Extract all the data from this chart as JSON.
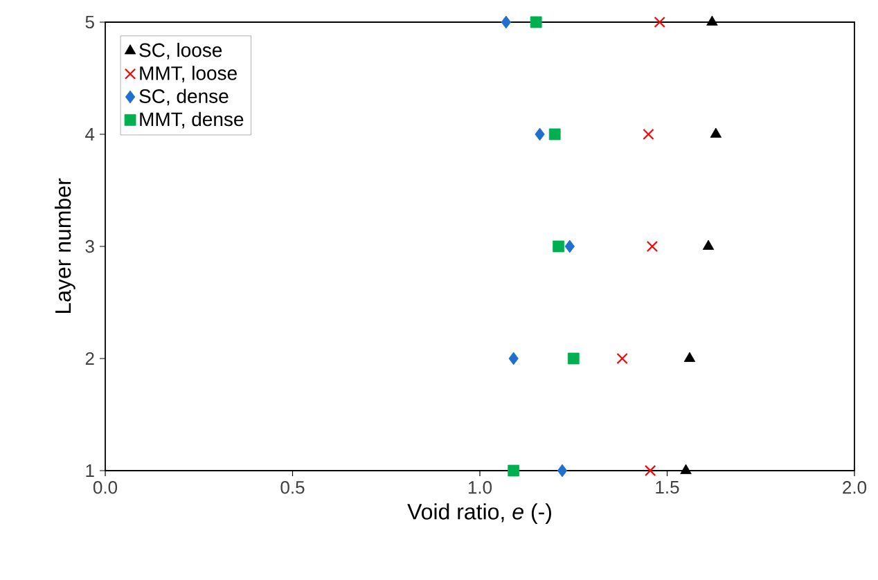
{
  "chart_data": {
    "type": "scatter",
    "xlabel": "Void ratio, *e* (-)",
    "ylabel": "Layer number",
    "xlim": [
      0,
      2
    ],
    "ylim": [
      1,
      5
    ],
    "xticks": [
      {
        "value": 0,
        "label": "0.0"
      },
      {
        "value": 0.5,
        "label": "0.5"
      },
      {
        "value": 1,
        "label": "1.0"
      },
      {
        "value": 1.5,
        "label": "1.5"
      },
      {
        "value": 2,
        "label": "2.0"
      }
    ],
    "yticks": [
      1,
      2,
      3,
      4,
      5
    ],
    "grid": false,
    "legend": "top left",
    "series": [
      {
        "name": "SC, loose",
        "color": "#000000",
        "marker": "triangle",
        "x": [
          1.55,
          1.56,
          1.61,
          1.63,
          1.62
        ],
        "values": [
          1,
          2,
          3,
          4,
          5
        ]
      },
      {
        "name": "MMT, loose",
        "color": "#ff0000",
        "marker": "cross",
        "x": [
          1.455,
          1.38,
          1.46,
          1.45,
          1.48
        ],
        "values": [
          1,
          2,
          3,
          4,
          5
        ]
      },
      {
        "name": "SC, dense",
        "color": "#1f6fce",
        "marker": "diamond",
        "x": [
          1.22,
          1.09,
          1.24,
          1.16,
          1.07
        ],
        "values": [
          1,
          2,
          3,
          4,
          5
        ]
      },
      {
        "name": "MMT, dense",
        "color": "#00b050",
        "marker": "square",
        "x": [
          1.09,
          1.25,
          1.21,
          1.2,
          1.15
        ],
        "values": [
          1,
          2,
          3,
          4,
          5
        ]
      }
    ]
  }
}
